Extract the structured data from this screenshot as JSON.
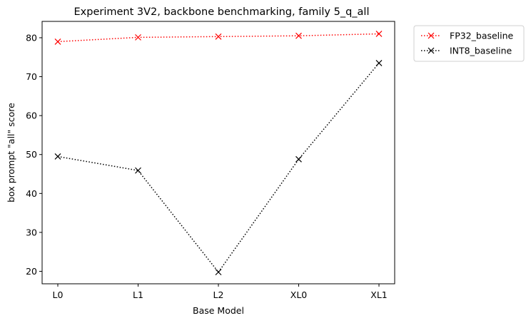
{
  "chart_data": {
    "type": "line",
    "title": "Experiment 3V2, backbone benchmarking, family 5_q_all",
    "xlabel": "Base Model",
    "ylabel": "box prompt \"all\" score",
    "categories": [
      "L0",
      "L1",
      "L2",
      "XL0",
      "XL1"
    ],
    "ylim": [
      16.8,
      84.2
    ],
    "yticks": [
      20,
      30,
      40,
      50,
      60,
      70,
      80
    ],
    "grid": false,
    "legend_position": "outside-top-right",
    "series": [
      {
        "name": "FP32_baseline",
        "color": "#ff0000",
        "linestyle": "dotted",
        "marker": "x",
        "values": [
          79.0,
          80.1,
          80.3,
          80.5,
          81.0
        ]
      },
      {
        "name": "INT8_baseline",
        "color": "#000000",
        "linestyle": "dotted",
        "marker": "x",
        "values": [
          49.5,
          45.9,
          19.8,
          48.8,
          73.5
        ]
      }
    ]
  }
}
